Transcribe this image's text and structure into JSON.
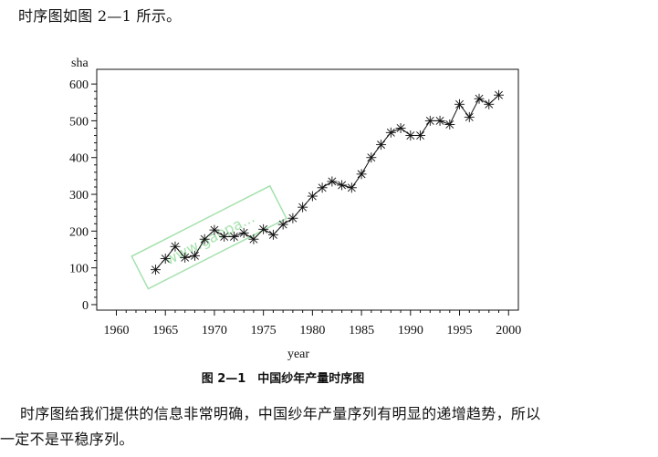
{
  "page": {
    "intro_text": "时序图如图 2—1 所示。",
    "body_line1": "时序图给我们提供的信息非常明确，中国纱年产量序列有明显的递增趋势，所以",
    "body_line2": "一定不是平稳序列。",
    "figure_caption": "图 2—1　中国纱年产量时序图",
    "watermark_text": "www.gaopa...",
    "watermark_text_note": "faint watermark stamp"
  },
  "chart_data": {
    "type": "line",
    "marker": "asterisk",
    "xlabel": "year",
    "ylabel": "sha",
    "xlim": [
      1958,
      2001
    ],
    "ylim": [
      -15,
      640
    ],
    "x_ticks": [
      1960,
      1965,
      1970,
      1975,
      1980,
      1985,
      1990,
      1995,
      2000
    ],
    "y_ticks": [
      0,
      100,
      200,
      300,
      400,
      500,
      600
    ],
    "grid": false,
    "legend": "none",
    "colors": {
      "line": "#111111",
      "axis": "#111111",
      "watermark": "#5cc96a"
    },
    "series": [
      {
        "x": [
          1964,
          1965,
          1966,
          1967,
          1968,
          1969,
          1970,
          1971,
          1972,
          1973,
          1974,
          1975,
          1976,
          1977,
          1978,
          1979,
          1980,
          1981,
          1982,
          1983,
          1984,
          1985,
          1986,
          1987,
          1988,
          1989,
          1990,
          1991,
          1992,
          1993,
          1994,
          1995,
          1996,
          1997,
          1998,
          1999
        ],
        "values": [
          95,
          125,
          158,
          128,
          133,
          178,
          203,
          185,
          185,
          195,
          178,
          205,
          190,
          218,
          235,
          265,
          295,
          318,
          335,
          325,
          318,
          355,
          400,
          435,
          468,
          480,
          460,
          460,
          500,
          500,
          490,
          545,
          510,
          560,
          545,
          570
        ]
      }
    ]
  }
}
